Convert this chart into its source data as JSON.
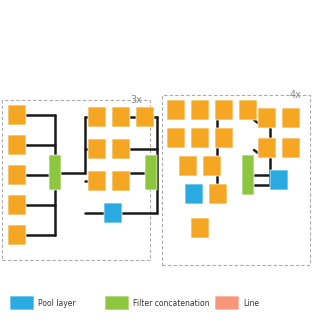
{
  "bg_color": "#f5f5f5",
  "orange": "#F5A623",
  "blue": "#29ABE2",
  "green": "#8DC63F",
  "red": "#F7977A",
  "box_color": "#F5A623",
  "line_color": "#1a1a1a",
  "dashed_box_color": "#aaaaaa",
  "label_color": "#555555",
  "legend_items": [
    {
      "label": "Pool layer",
      "color": "#29ABE2"
    },
    {
      "label": "Filter concatenation",
      "color": "#8DC63F"
    },
    {
      "label": "Line",
      "color": "#F7977A"
    }
  ],
  "module1_label": "3x",
  "module2_label": "4x"
}
